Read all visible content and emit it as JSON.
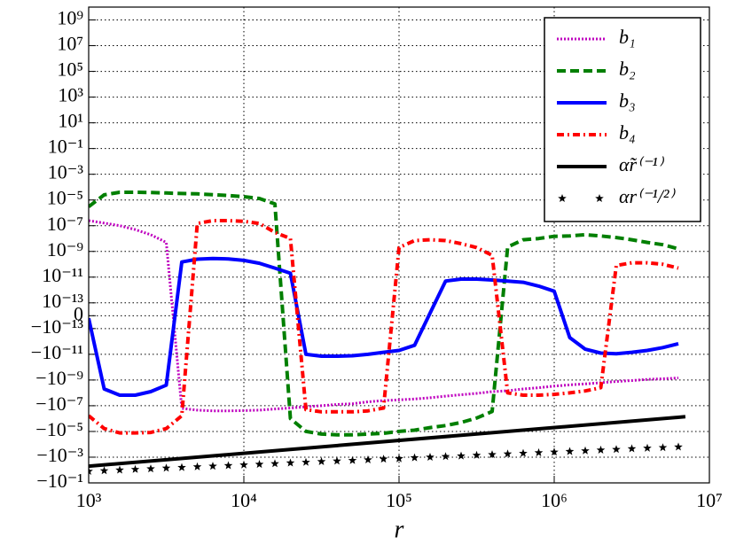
{
  "chart_data": {
    "type": "line",
    "x_label": "r",
    "xscale": "log",
    "yscale": "symlog",
    "linthresh": 1e-13,
    "grid": true,
    "legend": "upper right",
    "xlim": [
      1000,
      10000000
    ],
    "ylim": [
      -0.1,
      10000000000
    ],
    "xticks": [
      {
        "value": 1000,
        "label": "10³"
      },
      {
        "value": 10000,
        "label": "10⁴"
      },
      {
        "value": 100000,
        "label": "10⁵"
      },
      {
        "value": 1000000,
        "label": "10⁶"
      },
      {
        "value": 10000000,
        "label": "10⁷"
      }
    ],
    "yticks": [
      {
        "value": 1000000000.0,
        "label": "10⁹"
      },
      {
        "value": 10000000.0,
        "label": "10⁷"
      },
      {
        "value": 100000.0,
        "label": "10⁵"
      },
      {
        "value": 1000.0,
        "label": "10³"
      },
      {
        "value": 10.0,
        "label": "10¹"
      },
      {
        "value": 0.1,
        "label": "10⁻¹"
      },
      {
        "value": 0.001,
        "label": "10⁻³"
      },
      {
        "value": 1e-05,
        "label": "10⁻⁵"
      },
      {
        "value": 1e-07,
        "label": "10⁻⁷"
      },
      {
        "value": 1e-09,
        "label": "10⁻⁹"
      },
      {
        "value": 1e-11,
        "label": "10⁻¹¹"
      },
      {
        "value": 1e-13,
        "label": "10⁻¹³"
      },
      0,
      {
        "value": -1e-13,
        "label": "−10⁻¹³"
      },
      {
        "value": -1e-11,
        "label": "−10⁻¹¹"
      },
      {
        "value": -1e-09,
        "label": "−10⁻⁹"
      },
      {
        "value": -1e-07,
        "label": "−10⁻⁷"
      },
      {
        "value": -1e-05,
        "label": "−10⁻⁵"
      },
      {
        "value": -0.001,
        "label": "−10⁻³"
      },
      {
        "value": -0.1,
        "label": "−10⁻¹"
      }
    ],
    "x": [
      1000,
      1259,
      1585,
      1995,
      2512,
      3162,
      3981,
      5012,
      6310,
      7943,
      10000,
      12589,
      15849,
      19953,
      25119,
      31623,
      39811,
      50119,
      63096,
      79433,
      100000,
      125893,
      158489,
      199526,
      251189,
      316228,
      398107,
      501187,
      630957,
      794328,
      1000000,
      1258925,
      1584893,
      1995262,
      2511886,
      3162278,
      3981072,
      5011872,
      6309573
    ],
    "series": [
      {
        "name": "b₁",
        "color": "#bf00bf",
        "linestyle": "dotted",
        "values": [
          2.5e-07,
          1.6e-07,
          1e-07,
          5e-08,
          2e-08,
          5e-09,
          -1.6e-07,
          -2.2e-07,
          -2.5e-07,
          -2.5e-07,
          -2.4e-07,
          -2.2e-07,
          -1.8e-07,
          -1.5e-07,
          -1.2e-07,
          -1e-07,
          -8e-08,
          -7e-08,
          -5e-08,
          -4e-08,
          -3.5e-08,
          -3e-08,
          -2.4e-08,
          -1.8e-08,
          -1.4e-08,
          -1.1e-08,
          -8e-09,
          -6.8e-09,
          -5e-09,
          -4e-09,
          -3e-09,
          -2.4e-09,
          -2e-09,
          -1.6e-09,
          -1.3e-09,
          -1.1e-09,
          -9e-10,
          -8e-10,
          -7e-10
        ]
      },
      {
        "name": "b₂",
        "color": "#007f00",
        "linestyle": "dashed",
        "values": [
          3e-06,
          2.5e-05,
          4e-05,
          4e-05,
          3.8e-05,
          3.5e-05,
          3.2e-05,
          3e-05,
          2.6e-05,
          2.2e-05,
          1.8e-05,
          1.3e-05,
          5e-06,
          -1e-06,
          -1e-05,
          -1.6e-05,
          -1.8e-05,
          -1.8e-05,
          -1.6e-05,
          -1.4e-05,
          -1e-05,
          -8e-06,
          -5e-06,
          -3.5e-06,
          -2e-06,
          -9e-07,
          -2.8e-07,
          2.2e-09,
          8e-09,
          1e-08,
          1.5e-08,
          1.6e-08,
          2e-08,
          1.6e-08,
          1.2e-08,
          8e-09,
          5e-09,
          3.3e-09,
          1.6e-09
        ]
      },
      {
        "name": "b₃",
        "color": "#0000ff",
        "linestyle": "solid",
        "values": [
          -2e-14,
          -5e-09,
          -1.5e-08,
          -1.5e-08,
          -8e-09,
          -2.5e-09,
          1.5e-10,
          2.5e-10,
          2.8e-10,
          2.6e-10,
          2e-10,
          1.2e-10,
          5e-11,
          2e-11,
          -1e-11,
          -1.4e-11,
          -1.4e-11,
          -1.3e-11,
          -1e-11,
          -7e-12,
          -5e-12,
          -2e-12,
          2e-14,
          5e-12,
          7e-12,
          7e-12,
          6e-12,
          5e-12,
          4e-12,
          2e-12,
          8e-13,
          -5e-13,
          -4e-12,
          -8e-12,
          -9e-12,
          -7e-12,
          -5e-12,
          -3e-12,
          -1.5e-12
        ]
      },
      {
        "name": "b₄",
        "color": "#ff0000",
        "linestyle": "dashdot",
        "values": [
          -6e-07,
          -6e-06,
          -1.3e-05,
          -1.3e-05,
          -1.2e-05,
          -6e-06,
          -6e-07,
          1.5e-07,
          2.5e-07,
          2.5e-07,
          2.2e-07,
          1.5e-07,
          3e-08,
          1e-08,
          -2e-07,
          -3e-07,
          -3e-07,
          -3e-07,
          -2.5e-07,
          -1.5e-07,
          2e-09,
          7e-09,
          8e-09,
          7e-09,
          4e-09,
          2e-09,
          5e-10,
          -1e-08,
          -1.5e-08,
          -1.5e-08,
          -1.3e-08,
          -1e-08,
          -7e-09,
          -4e-09,
          8e-11,
          1.3e-10,
          1.3e-10,
          1e-10,
          5e-11
        ]
      },
      {
        "name": "α̃r⁽⁻¹⁾",
        "color": "#000000",
        "linestyle": "solid",
        "x": [
          1000,
          7000000
        ],
        "values": [
          -0.005,
          -7.1e-07
        ]
      },
      {
        "name": "αr⁽⁻¹/²⁾",
        "color": "#000000",
        "linestyle": "none",
        "marker": "star",
        "values": [
          -0.0126,
          -0.0113,
          -0.01,
          -0.0089,
          -0.008,
          -0.0071,
          -0.0063,
          -0.0056,
          -0.005,
          -0.0045,
          -0.004,
          -0.0036,
          -0.0032,
          -0.0028,
          -0.0025,
          -0.0022,
          -0.002,
          -0.0018,
          -0.0016,
          -0.0014,
          -0.0013,
          -0.0011,
          -0.001,
          -0.00089,
          -0.0008,
          -0.00071,
          -0.00063,
          -0.00056,
          -0.0005,
          -0.00045,
          -0.0004,
          -0.00036,
          -0.00032,
          -0.00028,
          -0.00025,
          -0.00022,
          -0.0002,
          -0.00018,
          -0.00016
        ]
      }
    ]
  }
}
